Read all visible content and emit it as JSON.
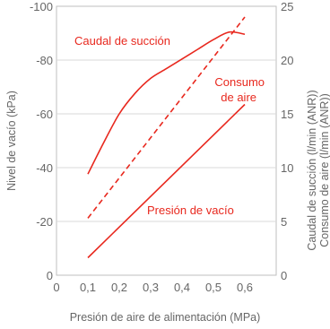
{
  "chart_data": {
    "type": "line",
    "xlabel": "Presión de aire de alimentación (MPa)",
    "ylabel_left": "Nivel de vacío (kPa)",
    "ylabel_right_1": "Caudal de succión (l/min (ANR))",
    "ylabel_right_2": "Consumo de aire (l/min (ANR))",
    "x_ticks": [
      "0",
      "0,1",
      "0,2",
      "0,3",
      "0,4",
      "0,5",
      "0,6"
    ],
    "x_range": [
      0,
      0.7
    ],
    "y_left_ticks": [
      "0",
      "-20",
      "-40",
      "-60",
      "-80",
      "-100"
    ],
    "y_left_range": [
      0,
      -100
    ],
    "y_right_ticks": [
      "0",
      "5",
      "10",
      "15",
      "20",
      "25"
    ],
    "y_right_range": [
      0,
      25
    ],
    "grid": true,
    "color": "#e8281e",
    "series": [
      {
        "name": "Caudal de succión",
        "axis": "right",
        "style": "solid",
        "label": "Caudal de succión",
        "x": [
          0.1,
          0.15,
          0.2,
          0.25,
          0.3,
          0.35,
          0.4,
          0.45,
          0.5,
          0.55,
          0.6
        ],
        "y": [
          9.4,
          12.3,
          15.0,
          16.9,
          18.3,
          19.2,
          20.1,
          21.0,
          21.9,
          22.6,
          22.4
        ]
      },
      {
        "name": "Consumo de aire",
        "axis": "right",
        "style": "dashed",
        "label_lines": [
          "Consumo",
          "de aire"
        ],
        "x": [
          0.1,
          0.6
        ],
        "y": [
          5.3,
          24.0
        ]
      },
      {
        "name": "Presión de vacío",
        "axis": "left",
        "style": "solid",
        "label": "Presión de vacío",
        "x": [
          0.1,
          0.6
        ],
        "y": [
          -6.5,
          -63.5
        ]
      }
    ]
  }
}
